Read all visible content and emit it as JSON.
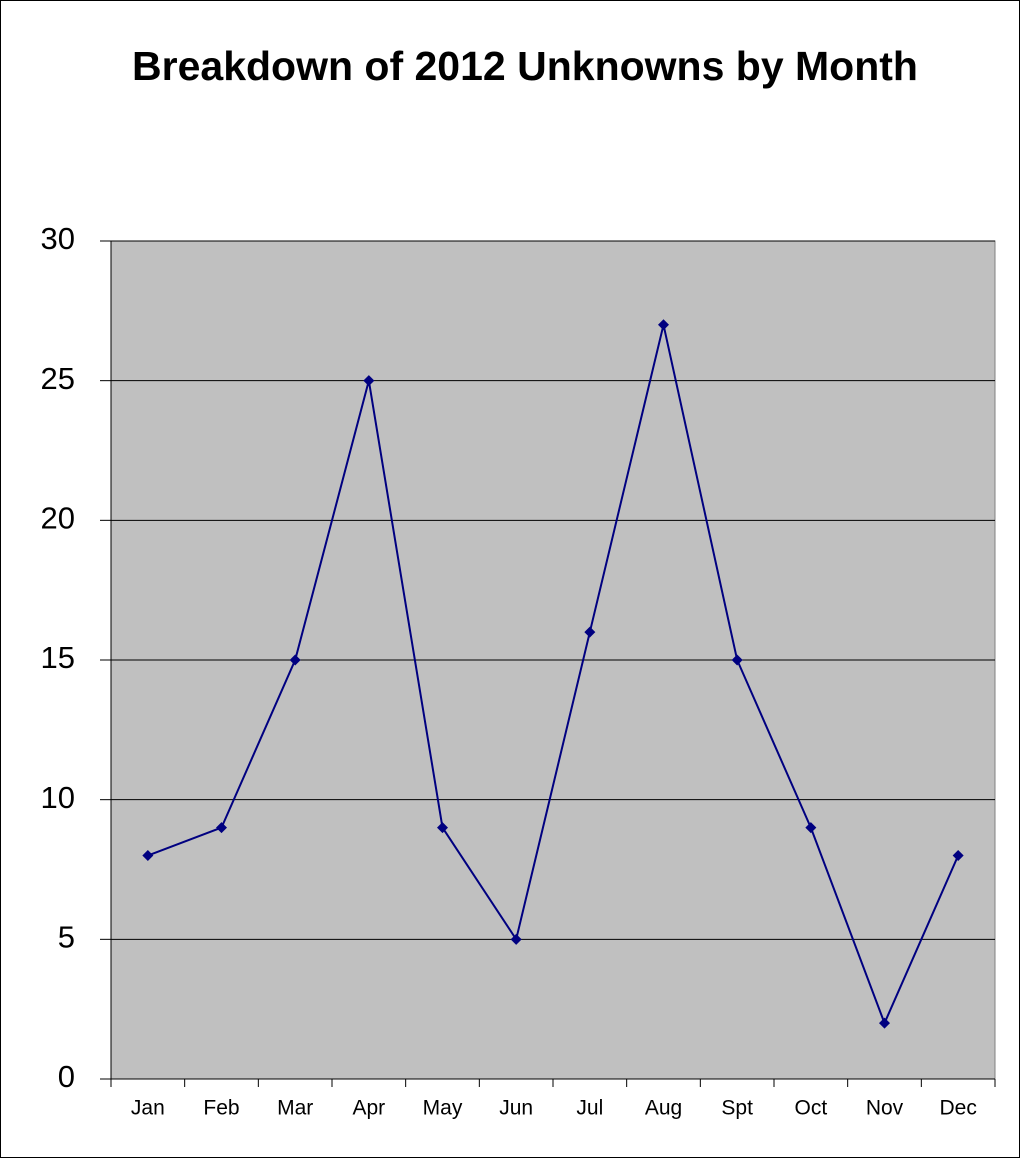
{
  "chart_data": {
    "type": "line",
    "title": "Breakdown of 2012 Unknowns by Month",
    "categories": [
      "Jan",
      "Feb",
      "Mar",
      "Apr",
      "May",
      "Jun",
      "Jul",
      "Aug",
      "Spt",
      "Oct",
      "Nov",
      "Dec"
    ],
    "values": [
      8,
      9,
      15,
      25,
      9,
      5,
      16,
      27,
      15,
      9,
      2,
      8
    ],
    "color": "#000080",
    "plot_color": "#c0c0c0",
    "ylim": [
      0,
      30
    ],
    "yticks": [
      0,
      5,
      10,
      15,
      20,
      25,
      30
    ],
    "grid": true,
    "marker": "diamond"
  }
}
